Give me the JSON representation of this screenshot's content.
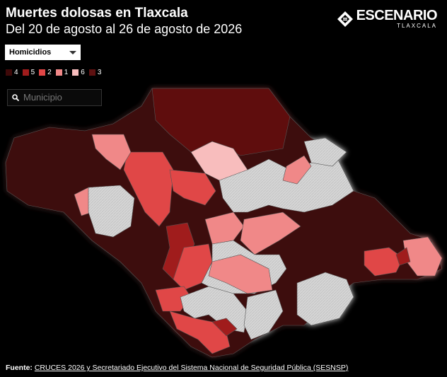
{
  "header": {
    "title": "Muertes dolosas en Tlaxcala",
    "subtitle": "Del 20 de agosto al 26 de agosto de 2026"
  },
  "logo": {
    "name": "ESCENARIO",
    "region": "TLAXCALA"
  },
  "dropdown": {
    "selected": "Homicidios"
  },
  "legend": {
    "items": [
      {
        "label": "4",
        "color": "#3e0909"
      },
      {
        "label": "5",
        "color": "#a01c1c"
      },
      {
        "label": "2",
        "color": "#e04646"
      },
      {
        "label": "1",
        "color": "#f08888"
      },
      {
        "label": "6",
        "color": "#f8bdbd"
      },
      {
        "label": "3",
        "color": "#5e1111"
      }
    ]
  },
  "search": {
    "placeholder": "Municipio"
  },
  "footer": {
    "label": "Fuente:",
    "link": "CRUCES 2026 y Secretariado Ejecutivo del Sistema Nacional de Seguridad Pública (SESNSP)"
  }
}
